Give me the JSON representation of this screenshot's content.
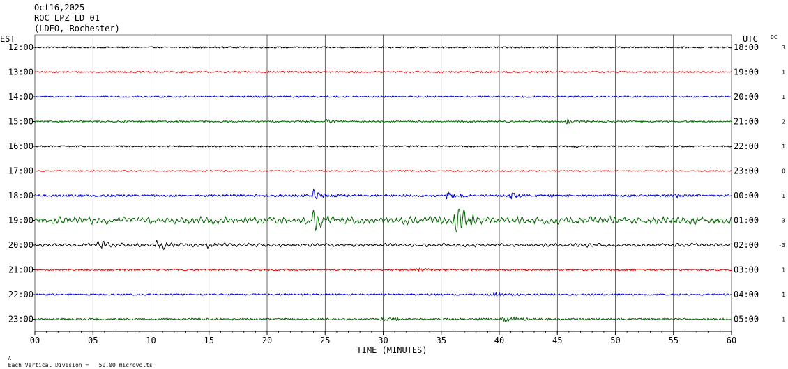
{
  "header": {
    "date": "Oct16,2025",
    "station": "ROC LPZ LD 01",
    "location": "(LDEO, Rochester)"
  },
  "left_tz": "EST",
  "right_tz": "UTC",
  "dc_header": "DC",
  "footer": {
    "glyph": "A",
    "note": "Each Vertical Division =   50.00 microvolts"
  },
  "colors": {
    "black": "#000000",
    "red": "#e00000",
    "blue": "#0000d0",
    "green": "#006400",
    "grid": "#000000"
  },
  "chart_data": {
    "type": "line",
    "xlabel": "TIME (MINUTES)",
    "xlim": [
      0,
      60
    ],
    "xticks": [
      "00",
      "05",
      "10",
      "15",
      "20",
      "25",
      "30",
      "35",
      "40",
      "45",
      "50",
      "55",
      "60"
    ],
    "rows": [
      {
        "est": "12:00",
        "utc": "18:00",
        "dc": "3",
        "color": "black",
        "amplitude": 1.0,
        "events": []
      },
      {
        "est": "13:00",
        "utc": "19:00",
        "dc": "1",
        "color": "red",
        "amplitude": 1.0,
        "events": []
      },
      {
        "est": "14:00",
        "utc": "20:00",
        "dc": "1",
        "color": "blue",
        "amplitude": 1.0,
        "events": []
      },
      {
        "est": "15:00",
        "utc": "21:00",
        "dc": "2",
        "color": "green",
        "amplitude": 1.0,
        "events": [
          {
            "minute": 25.1,
            "strength": 3.0,
            "width": 0.3
          },
          {
            "minute": 45.8,
            "strength": 3.0,
            "width": 0.6
          }
        ]
      },
      {
        "est": "16:00",
        "utc": "22:00",
        "dc": "1",
        "color": "black",
        "amplitude": 1.0,
        "events": [
          {
            "minute": 46.5,
            "strength": 1.5,
            "width": 0.5
          }
        ]
      },
      {
        "est": "17:00",
        "utc": "23:00",
        "dc": "0",
        "color": "red",
        "amplitude": 0.8,
        "events": []
      },
      {
        "est": "18:00",
        "utc": "00:00",
        "dc": "1",
        "color": "blue",
        "amplitude": 1.5,
        "events": [
          {
            "minute": 24.0,
            "strength": 5.0,
            "width": 0.4
          },
          {
            "minute": 35.5,
            "strength": 3.5,
            "width": 0.5
          },
          {
            "minute": 41.0,
            "strength": 3.0,
            "width": 0.5
          },
          {
            "minute": 55.0,
            "strength": 2.5,
            "width": 0.4
          }
        ]
      },
      {
        "est": "19:00",
        "utc": "01:00",
        "dc": "3",
        "color": "green",
        "amplitude": 5.5,
        "events": [
          {
            "minute": 24.0,
            "strength": 3.0,
            "width": 0.5
          },
          {
            "minute": 36.3,
            "strength": 4.5,
            "width": 0.8
          }
        ]
      },
      {
        "est": "20:00",
        "utc": "02:00",
        "dc": "-3",
        "color": "black",
        "amplitude": 2.6,
        "events": [
          {
            "minute": 5.5,
            "strength": 2.5,
            "width": 0.6
          },
          {
            "minute": 10.5,
            "strength": 2.5,
            "width": 0.6
          },
          {
            "minute": 14.8,
            "strength": 2.0,
            "width": 0.4
          }
        ]
      },
      {
        "est": "21:00",
        "utc": "03:00",
        "dc": "1",
        "color": "red",
        "amplitude": 1.1,
        "events": [
          {
            "minute": 32.5,
            "strength": 1.5,
            "width": 1.2
          }
        ]
      },
      {
        "est": "22:00",
        "utc": "04:00",
        "dc": "1",
        "color": "blue",
        "amplitude": 1.1,
        "events": [
          {
            "minute": 39.5,
            "strength": 2.0,
            "width": 1.0
          }
        ]
      },
      {
        "est": "23:00",
        "utc": "05:00",
        "dc": "1",
        "color": "green",
        "amplitude": 1.3,
        "events": [
          {
            "minute": 40.5,
            "strength": 2.2,
            "width": 0.8
          },
          {
            "minute": 30.0,
            "strength": 1.3,
            "width": 0.8
          }
        ]
      }
    ]
  }
}
